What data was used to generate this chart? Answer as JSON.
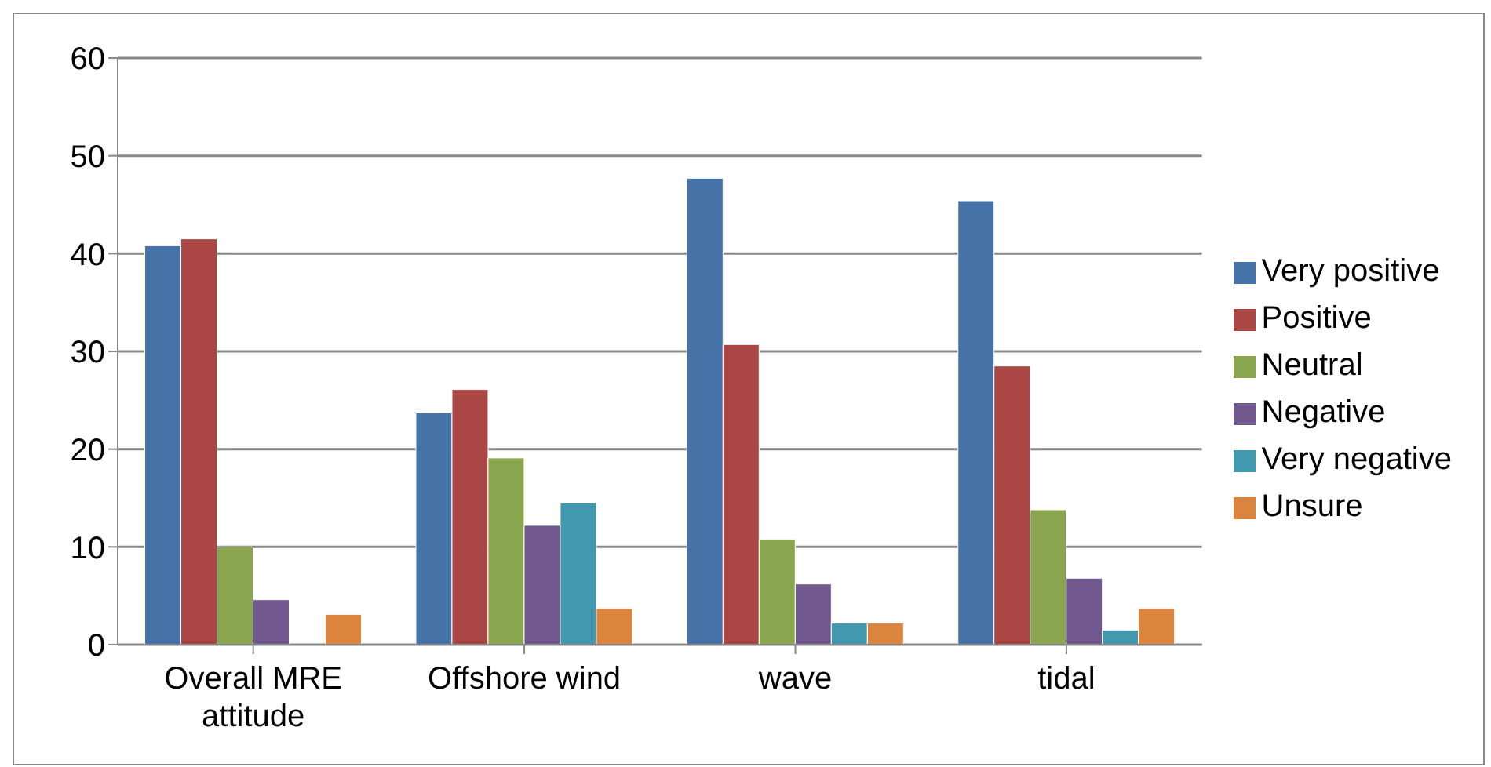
{
  "chart_data": {
    "type": "bar",
    "categories": [
      "Overall MRE attitude",
      "Offshore wind",
      "wave",
      "tidal"
    ],
    "series": [
      {
        "name": "Very positive",
        "color": "#4572a7",
        "values": [
          40.8,
          23.7,
          47.7,
          45.4
        ]
      },
      {
        "name": "Positive",
        "color": "#aa4643",
        "values": [
          41.5,
          26.1,
          30.7,
          28.5
        ]
      },
      {
        "name": "Neutral",
        "color": "#89a54e",
        "values": [
          10.0,
          19.1,
          10.8,
          13.8
        ]
      },
      {
        "name": "Negative",
        "color": "#71588f",
        "values": [
          4.6,
          12.2,
          6.2,
          6.8
        ]
      },
      {
        "name": "Very negative",
        "color": "#4198af",
        "values": [
          0,
          14.5,
          2.2,
          1.5
        ]
      },
      {
        "name": "Unsure",
        "color": "#db843d",
        "values": [
          3.1,
          3.7,
          2.2,
          3.7
        ]
      }
    ],
    "ylim": [
      0,
      60
    ],
    "yticks": [
      0,
      10,
      20,
      30,
      40,
      50,
      60
    ],
    "grid": "y",
    "legend": "right"
  }
}
